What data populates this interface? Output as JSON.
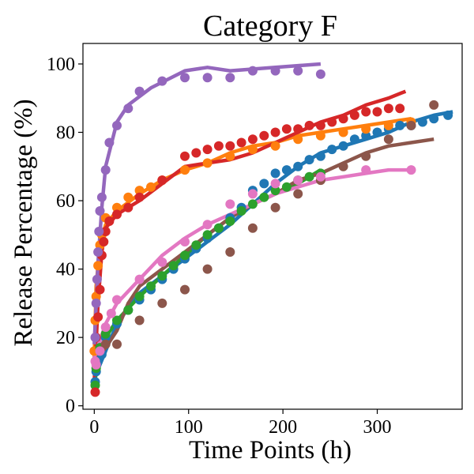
{
  "chart_data": {
    "type": "scatter",
    "title": "Category F",
    "xlabel": "Time Points (h)",
    "ylabel": "Release Percentage (%)",
    "xlim": [
      -12,
      390
    ],
    "ylim": [
      -1,
      106
    ],
    "xticks": [
      0,
      100,
      200,
      300
    ],
    "yticks": [
      0,
      20,
      40,
      60,
      80,
      100
    ],
    "grid": false,
    "legend": "none",
    "series": [
      {
        "color": "#1f77b4",
        "points": [
          [
            1,
            7
          ],
          [
            2,
            10
          ],
          [
            4,
            13
          ],
          [
            8,
            15
          ],
          [
            12,
            20
          ],
          [
            24,
            24
          ],
          [
            36,
            28
          ],
          [
            48,
            31
          ],
          [
            60,
            34
          ],
          [
            72,
            37
          ],
          [
            84,
            40
          ],
          [
            96,
            43
          ],
          [
            108,
            46
          ],
          [
            120,
            49
          ],
          [
            132,
            52
          ],
          [
            144,
            55
          ],
          [
            156,
            58
          ],
          [
            168,
            63
          ],
          [
            180,
            65
          ],
          [
            192,
            68
          ],
          [
            204,
            69
          ],
          [
            216,
            70
          ],
          [
            228,
            72
          ],
          [
            240,
            73
          ],
          [
            252,
            75
          ],
          [
            264,
            76
          ],
          [
            276,
            78
          ],
          [
            288,
            79
          ],
          [
            300,
            80
          ],
          [
            312,
            81
          ],
          [
            324,
            82
          ],
          [
            336,
            82
          ],
          [
            348,
            83
          ],
          [
            360,
            84
          ],
          [
            375,
            85
          ]
        ],
        "fit": [
          [
            0,
            8
          ],
          [
            24,
            24
          ],
          [
            48,
            33
          ],
          [
            72,
            38
          ],
          [
            96,
            43
          ],
          [
            120,
            48
          ],
          [
            144,
            53
          ],
          [
            168,
            59
          ],
          [
            192,
            65
          ],
          [
            216,
            70
          ],
          [
            240,
            74
          ],
          [
            264,
            76
          ],
          [
            288,
            78
          ],
          [
            312,
            80
          ],
          [
            336,
            83
          ],
          [
            360,
            85
          ],
          [
            380,
            86
          ]
        ]
      },
      {
        "color": "#ff7f0e",
        "points": [
          [
            0,
            16
          ],
          [
            1,
            25
          ],
          [
            2,
            32
          ],
          [
            4,
            41
          ],
          [
            6,
            47
          ],
          [
            8,
            50
          ],
          [
            12,
            55
          ],
          [
            24,
            58
          ],
          [
            36,
            61
          ],
          [
            48,
            63
          ],
          [
            60,
            64
          ],
          [
            72,
            66
          ],
          [
            96,
            69
          ],
          [
            120,
            71
          ],
          [
            144,
            73
          ],
          [
            168,
            75
          ],
          [
            192,
            76
          ],
          [
            216,
            78
          ],
          [
            240,
            79
          ],
          [
            264,
            80
          ],
          [
            288,
            81
          ],
          [
            312,
            82
          ],
          [
            336,
            83
          ]
        ],
        "fit": [
          [
            0,
            14
          ],
          [
            2,
            35
          ],
          [
            6,
            47
          ],
          [
            12,
            53
          ],
          [
            24,
            57
          ],
          [
            48,
            62
          ],
          [
            72,
            66
          ],
          [
            96,
            69
          ],
          [
            120,
            71
          ],
          [
            144,
            74
          ],
          [
            168,
            76
          ],
          [
            192,
            77
          ],
          [
            216,
            79
          ],
          [
            240,
            80
          ],
          [
            264,
            81
          ],
          [
            288,
            82
          ],
          [
            312,
            83
          ],
          [
            336,
            84
          ]
        ]
      },
      {
        "color": "#2ca02c",
        "points": [
          [
            1,
            6
          ],
          [
            2,
            11
          ],
          [
            6,
            17
          ],
          [
            12,
            21
          ],
          [
            24,
            25
          ],
          [
            36,
            28
          ],
          [
            48,
            32
          ],
          [
            60,
            35
          ],
          [
            72,
            38
          ],
          [
            84,
            41
          ],
          [
            96,
            44
          ],
          [
            108,
            47
          ],
          [
            120,
            50
          ],
          [
            132,
            52
          ],
          [
            144,
            54
          ],
          [
            156,
            57
          ],
          [
            168,
            59
          ],
          [
            180,
            61
          ],
          [
            192,
            63
          ],
          [
            204,
            64
          ],
          [
            216,
            66
          ],
          [
            228,
            67
          ],
          [
            240,
            68
          ]
        ],
        "fit": [
          [
            0,
            7
          ],
          [
            12,
            20
          ],
          [
            24,
            25
          ],
          [
            48,
            32
          ],
          [
            72,
            38
          ],
          [
            96,
            44
          ],
          [
            120,
            50
          ],
          [
            144,
            55
          ],
          [
            168,
            59
          ],
          [
            192,
            62
          ],
          [
            216,
            65
          ],
          [
            240,
            69
          ]
        ]
      },
      {
        "color": "#d62728",
        "points": [
          [
            1,
            4
          ],
          [
            2,
            20
          ],
          [
            4,
            26
          ],
          [
            6,
            34
          ],
          [
            8,
            44
          ],
          [
            10,
            48
          ],
          [
            12,
            51
          ],
          [
            16,
            54
          ],
          [
            24,
            56
          ],
          [
            36,
            58
          ],
          [
            48,
            61
          ],
          [
            72,
            66
          ],
          [
            96,
            73
          ],
          [
            108,
            74
          ],
          [
            120,
            75
          ],
          [
            132,
            76
          ],
          [
            144,
            76
          ],
          [
            156,
            77
          ],
          [
            168,
            78
          ],
          [
            180,
            79
          ],
          [
            192,
            80
          ],
          [
            204,
            81
          ],
          [
            216,
            81
          ],
          [
            228,
            82
          ],
          [
            240,
            82
          ],
          [
            252,
            83
          ],
          [
            264,
            84
          ],
          [
            276,
            85
          ],
          [
            288,
            86
          ],
          [
            300,
            86
          ],
          [
            312,
            87
          ],
          [
            324,
            87
          ]
        ],
        "fit": [
          [
            0,
            7
          ],
          [
            4,
            30
          ],
          [
            8,
            45
          ],
          [
            12,
            52
          ],
          [
            24,
            56
          ],
          [
            48,
            60
          ],
          [
            72,
            65
          ],
          [
            96,
            70
          ],
          [
            120,
            71
          ],
          [
            144,
            72
          ],
          [
            168,
            74
          ],
          [
            192,
            77
          ],
          [
            216,
            80
          ],
          [
            240,
            83
          ],
          [
            264,
            85
          ],
          [
            288,
            88
          ],
          [
            312,
            90
          ],
          [
            330,
            92
          ]
        ]
      },
      {
        "color": "#9467bd",
        "points": [
          [
            1,
            20
          ],
          [
            2,
            30
          ],
          [
            3,
            37
          ],
          [
            4,
            45
          ],
          [
            5,
            51
          ],
          [
            6,
            57
          ],
          [
            8,
            61
          ],
          [
            12,
            69
          ],
          [
            16,
            77
          ],
          [
            24,
            82
          ],
          [
            36,
            87
          ],
          [
            48,
            92
          ],
          [
            72,
            95
          ],
          [
            96,
            96
          ],
          [
            120,
            96
          ],
          [
            144,
            96
          ],
          [
            168,
            98
          ],
          [
            192,
            98
          ],
          [
            216,
            98
          ],
          [
            240,
            97
          ]
        ],
        "fit": [
          [
            0,
            18
          ],
          [
            4,
            42
          ],
          [
            8,
            58
          ],
          [
            12,
            70
          ],
          [
            24,
            83
          ],
          [
            36,
            88
          ],
          [
            60,
            93
          ],
          [
            96,
            98
          ],
          [
            120,
            99
          ],
          [
            144,
            98
          ],
          [
            192,
            99
          ],
          [
            240,
            100
          ]
        ]
      },
      {
        "color": "#8c564b",
        "points": [
          [
            12,
            18
          ],
          [
            24,
            18
          ],
          [
            48,
            25
          ],
          [
            72,
            30
          ],
          [
            96,
            34
          ],
          [
            120,
            40
          ],
          [
            144,
            45
          ],
          [
            168,
            52
          ],
          [
            192,
            58
          ],
          [
            216,
            62
          ],
          [
            240,
            66
          ],
          [
            264,
            70
          ],
          [
            288,
            73
          ],
          [
            312,
            78
          ],
          [
            336,
            82
          ],
          [
            360,
            88
          ]
        ],
        "fit": [
          [
            0,
            13
          ],
          [
            12,
            17
          ],
          [
            24,
            22
          ],
          [
            36,
            30
          ],
          [
            48,
            35
          ],
          [
            72,
            40
          ],
          [
            96,
            45
          ],
          [
            120,
            50
          ],
          [
            144,
            55
          ],
          [
            168,
            59
          ],
          [
            192,
            62
          ],
          [
            216,
            66
          ],
          [
            240,
            68
          ],
          [
            264,
            71
          ],
          [
            288,
            74
          ],
          [
            312,
            76
          ],
          [
            336,
            77
          ],
          [
            360,
            78
          ]
        ]
      },
      {
        "color": "#e377c2",
        "points": [
          [
            1,
            13
          ],
          [
            2,
            12
          ],
          [
            6,
            16
          ],
          [
            12,
            23
          ],
          [
            18,
            27
          ],
          [
            24,
            31
          ],
          [
            48,
            37
          ],
          [
            72,
            42
          ],
          [
            96,
            48
          ],
          [
            120,
            53
          ],
          [
            144,
            59
          ],
          [
            168,
            62
          ],
          [
            192,
            65
          ],
          [
            216,
            66
          ],
          [
            240,
            67
          ],
          [
            288,
            69
          ],
          [
            336,
            69
          ]
        ],
        "fit": [
          [
            0,
            14
          ],
          [
            12,
            24
          ],
          [
            24,
            30
          ],
          [
            48,
            37
          ],
          [
            72,
            44
          ],
          [
            96,
            49
          ],
          [
            120,
            53
          ],
          [
            144,
            56
          ],
          [
            168,
            59
          ],
          [
            192,
            62
          ],
          [
            216,
            64
          ],
          [
            240,
            66
          ],
          [
            264,
            67
          ],
          [
            288,
            68
          ],
          [
            312,
            69
          ],
          [
            336,
            69
          ]
        ]
      }
    ]
  }
}
